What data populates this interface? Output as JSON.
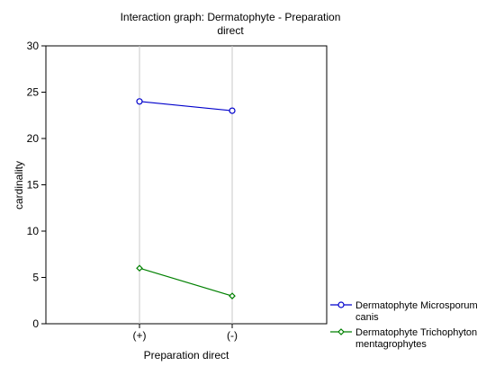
{
  "chart_data": {
    "type": "line",
    "title_line1": "Interaction graph: Dermatophyte - Preparation",
    "title_line2": "direct",
    "xlabel": "Preparation direct",
    "ylabel": "cardinality",
    "categories": [
      "(+)",
      "(-)"
    ],
    "ylim": [
      0,
      30
    ],
    "yticks": [
      "0",
      "5",
      "10",
      "15",
      "20",
      "25",
      "30"
    ],
    "grid": "vertical",
    "legend_position": "bottom-right",
    "series": [
      {
        "legend_line1": "Dermatophyte Microsporum",
        "legend_line2": "canis",
        "values": [
          24,
          23
        ],
        "color": "#0000cc",
        "marker": "circle"
      },
      {
        "legend_line1": "Dermatophyte Trichophyton",
        "legend_line2": "mentagrophytes",
        "values": [
          6,
          3
        ],
        "color": "#008000",
        "marker": "diamond"
      }
    ]
  }
}
